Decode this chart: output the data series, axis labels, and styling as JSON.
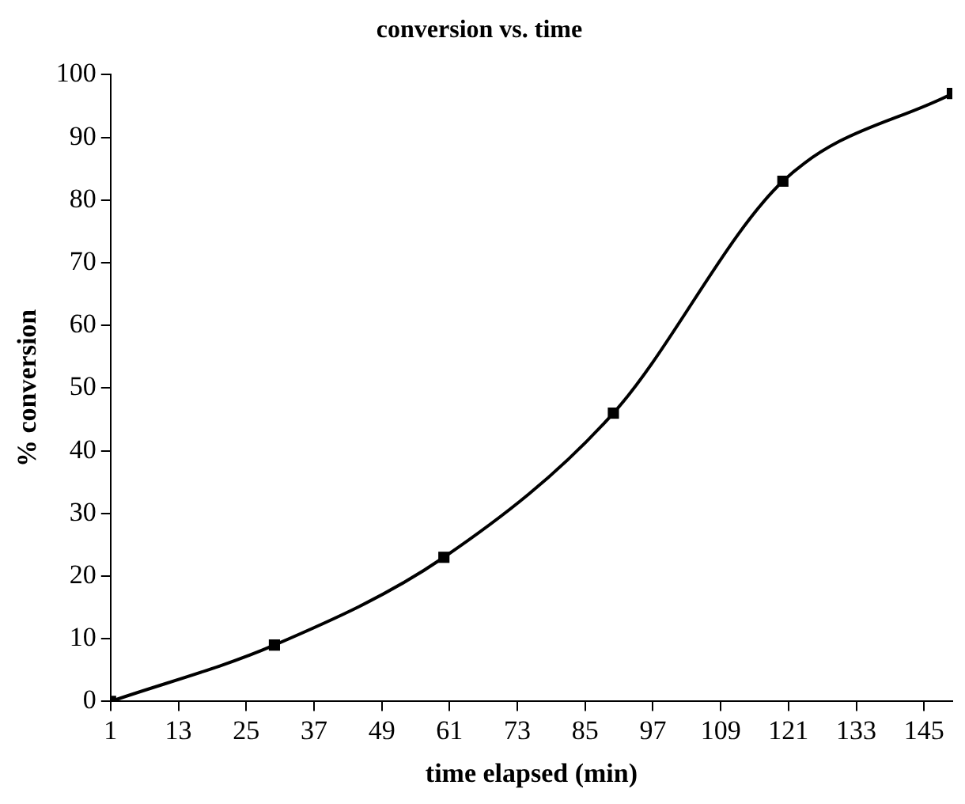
{
  "chart_data": {
    "type": "line",
    "title": "conversion vs. time",
    "xlabel": "time elapsed (min)",
    "ylabel": "% conversion",
    "x": [
      1,
      30,
      60,
      90,
      120,
      150
    ],
    "series": [
      {
        "color": "#000000",
        "values": [
          0,
          9,
          23,
          46,
          83,
          97
        ]
      }
    ],
    "xlim": [
      1,
      150
    ],
    "xticks": [
      1,
      13,
      25,
      37,
      49,
      61,
      73,
      85,
      97,
      109,
      121,
      133,
      145
    ],
    "ylim": [
      0,
      100
    ],
    "yticks": [
      0,
      10,
      20,
      30,
      40,
      50,
      60,
      70,
      80,
      90,
      100
    ],
    "grid": false,
    "legend": false,
    "marker": "square",
    "line_style": "solid"
  }
}
